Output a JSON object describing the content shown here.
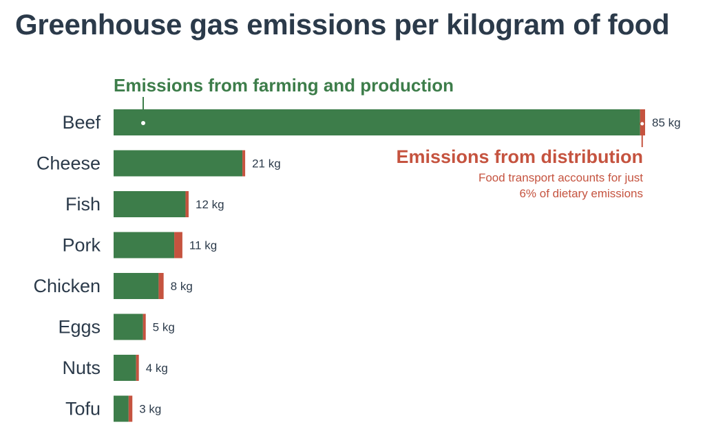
{
  "chart_data": {
    "type": "bar",
    "orientation": "horizontal",
    "stacked": true,
    "title": "Greenhouse gas emissions per kilogram of food",
    "xlabel": "",
    "ylabel": "",
    "unit": "kg",
    "xlim": [
      0,
      85
    ],
    "grid": false,
    "legend": "annotations",
    "categories": [
      "Beef",
      "Cheese",
      "Fish",
      "Pork",
      "Chicken",
      "Eggs",
      "Nuts",
      "Tofu"
    ],
    "totals": [
      85,
      21,
      12,
      11,
      8,
      5,
      4,
      3
    ],
    "value_labels": [
      "85 kg",
      "21 kg",
      "12 kg",
      "11 kg",
      "8 kg",
      "5 kg",
      "4 kg",
      "3 kg"
    ],
    "series": [
      {
        "name": "Emissions from farming and production",
        "color": "#3d7d4a",
        "values": [
          84.2,
          20.6,
          11.5,
          9.7,
          7.2,
          4.7,
          3.6,
          2.4
        ]
      },
      {
        "name": "Emissions from distribution",
        "color": "#c5533f",
        "values": [
          0.8,
          0.4,
          0.5,
          1.3,
          0.8,
          0.3,
          0.4,
          0.6
        ]
      }
    ],
    "annotations": {
      "farming": {
        "text": "Emissions from farming and production",
        "color": "#3d7d4a"
      },
      "distribution": {
        "text": "Emissions from distribution",
        "note_lines": [
          "Food transport accounts for just",
          "6% of dietary emissions"
        ],
        "color": "#c5533f"
      }
    }
  }
}
